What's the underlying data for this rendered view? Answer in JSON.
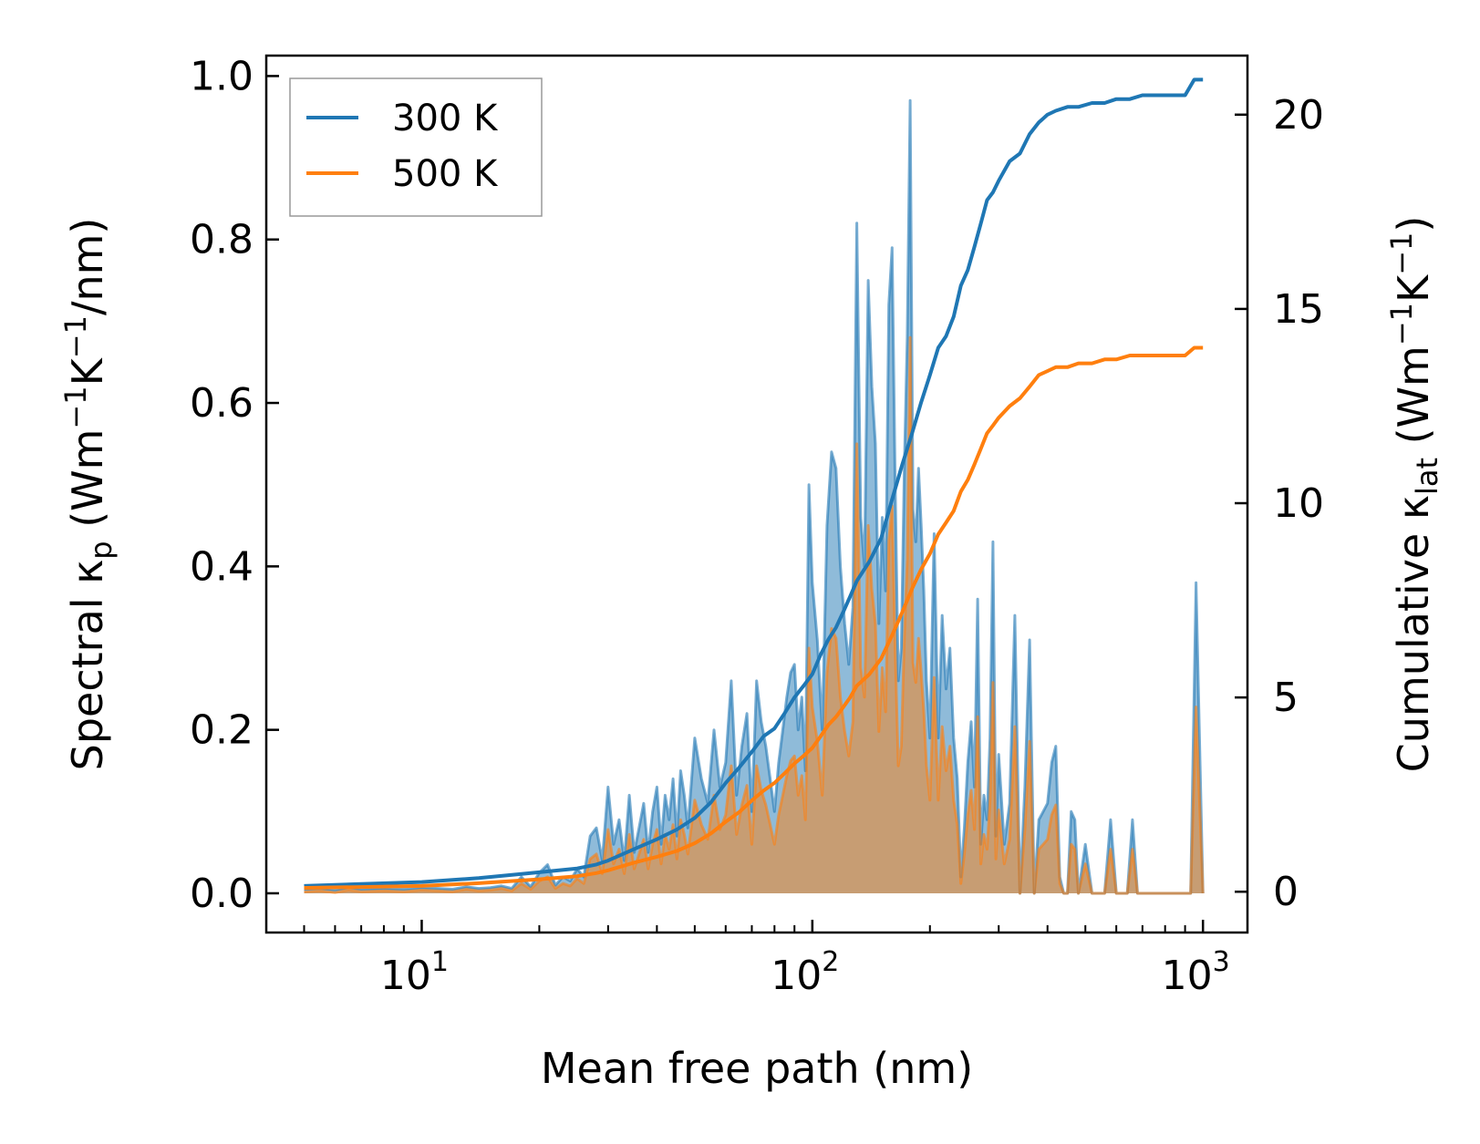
{
  "chart_data": {
    "type": "line",
    "xscale": "log",
    "xlabel": "Mean free path (nm)",
    "ylabel": {
      "prefix": "Spectral κ",
      "sub": "p",
      "units_before": " (Wm",
      "sup1": "−1",
      "mid": "K",
      "sup2": "−1",
      "after": "/nm)"
    },
    "y2label": {
      "prefix": "Cumulative κ",
      "sub": "lat",
      "units_before": " (Wm",
      "sup1": "−1",
      "mid": "K",
      "sup2": "−1",
      "after": ")"
    },
    "xlim": [
      4.0,
      1300.0
    ],
    "ylim": [
      -0.048,
      1.025
    ],
    "y2lim": [
      -1.05,
      21.52
    ],
    "xticks": [
      {
        "value": 10,
        "base": "10",
        "exp": "1"
      },
      {
        "value": 100,
        "base": "10",
        "exp": "2"
      },
      {
        "value": 1000,
        "base": "10",
        "exp": "3"
      }
    ],
    "yticks": [
      {
        "value": 0.0,
        "label": "0.0"
      },
      {
        "value": 0.2,
        "label": "0.2"
      },
      {
        "value": 0.4,
        "label": "0.4"
      },
      {
        "value": 0.6,
        "label": "0.6"
      },
      {
        "value": 0.8,
        "label": "0.8"
      },
      {
        "value": 1.0,
        "label": "1.0"
      }
    ],
    "y2ticks": [
      {
        "value": 0,
        "label": "0"
      },
      {
        "value": 5,
        "label": "5"
      },
      {
        "value": 10,
        "label": "10"
      },
      {
        "value": 15,
        "label": "15"
      },
      {
        "value": 20,
        "label": "20"
      }
    ],
    "legend": {
      "position": "upper-left",
      "entries": [
        {
          "label": "300 K",
          "color": "#1f77b4"
        },
        {
          "label": "500 K",
          "color": "#ff7f0e"
        }
      ]
    },
    "spectral": {
      "x": [
        5,
        5.5,
        6,
        6.5,
        7,
        8,
        9,
        10,
        11,
        12,
        13,
        14,
        15,
        16,
        17,
        18,
        19,
        20,
        21,
        22,
        23,
        24,
        25,
        26,
        27,
        28,
        29,
        30,
        31,
        32,
        33,
        34,
        35,
        36,
        37,
        38,
        39,
        40,
        41,
        42,
        43,
        44,
        45,
        46,
        47,
        48,
        50,
        52,
        54,
        56,
        58,
        60,
        62,
        64,
        66,
        68,
        70,
        72,
        74,
        76,
        78,
        80,
        82,
        84,
        86,
        88,
        90,
        92,
        94,
        96,
        98,
        100,
        103,
        106,
        109,
        112,
        115,
        118,
        121,
        124,
        127,
        130,
        133,
        136,
        139,
        142,
        145,
        148,
        151,
        154,
        157,
        160,
        163,
        166,
        169,
        172,
        175,
        178,
        181,
        184,
        187,
        190,
        193,
        196,
        200,
        205,
        210,
        215,
        220,
        225,
        230,
        235,
        240,
        245,
        250,
        255,
        260,
        265,
        270,
        275,
        280,
        285,
        290,
        295,
        300,
        310,
        320,
        330,
        340,
        350,
        360,
        370,
        380,
        390,
        400,
        410,
        420,
        430,
        440,
        450,
        460,
        470,
        480,
        500,
        520,
        540,
        560,
        580,
        600,
        620,
        640,
        660,
        680,
        700,
        720,
        740,
        760,
        800,
        850,
        900,
        930,
        960,
        1000
      ],
      "300 K": [
        0.005,
        0.006,
        0.004,
        0.007,
        0.005,
        0.006,
        0.005,
        0.007,
        0.006,
        0.005,
        0.008,
        0.006,
        0.007,
        0.009,
        0.006,
        0.02,
        0.008,
        0.025,
        0.035,
        0.01,
        0.02,
        0.015,
        0.03,
        0.02,
        0.07,
        0.08,
        0.04,
        0.13,
        0.06,
        0.09,
        0.04,
        0.12,
        0.05,
        0.08,
        0.11,
        0.05,
        0.1,
        0.13,
        0.06,
        0.12,
        0.09,
        0.14,
        0.07,
        0.15,
        0.12,
        0.08,
        0.19,
        0.14,
        0.11,
        0.2,
        0.13,
        0.16,
        0.26,
        0.12,
        0.18,
        0.22,
        0.1,
        0.26,
        0.21,
        0.18,
        0.14,
        0.1,
        0.16,
        0.2,
        0.24,
        0.27,
        0.28,
        0.2,
        0.24,
        0.15,
        0.5,
        0.38,
        0.31,
        0.2,
        0.45,
        0.54,
        0.52,
        0.4,
        0.33,
        0.28,
        0.35,
        0.82,
        0.46,
        0.4,
        0.75,
        0.62,
        0.55,
        0.33,
        0.46,
        0.37,
        0.72,
        0.79,
        0.5,
        0.26,
        0.3,
        0.52,
        0.68,
        0.97,
        0.47,
        0.43,
        0.52,
        0.45,
        0.37,
        0.26,
        0.19,
        0.44,
        0.19,
        0.34,
        0.25,
        0.3,
        0.19,
        0.14,
        0.02,
        0.08,
        0.16,
        0.21,
        0.13,
        0.36,
        0.06,
        0.12,
        0.09,
        0.19,
        0.43,
        0.07,
        0.17,
        0.06,
        0.11,
        0.34,
        0.0,
        0.13,
        0.31,
        0.0,
        0.09,
        0.1,
        0.11,
        0.16,
        0.18,
        0.02,
        0.0,
        0.0,
        0.1,
        0.09,
        0.0,
        0.06,
        0.0,
        0.0,
        0.0,
        0.09,
        0.0,
        0.0,
        0.0,
        0.09,
        0.0,
        0.0,
        0.0,
        0.0,
        0.0,
        0.0,
        0.0,
        0.0,
        0.0,
        0.38,
        0.0
      ],
      "500 K": [
        0.002,
        0.003,
        0.001,
        0.004,
        0.002,
        0.003,
        0.002,
        0.004,
        0.003,
        0.002,
        0.005,
        0.003,
        0.004,
        0.006,
        0.003,
        0.012,
        0.005,
        0.015,
        0.02,
        0.006,
        0.012,
        0.009,
        0.018,
        0.012,
        0.042,
        0.048,
        0.024,
        0.078,
        0.036,
        0.054,
        0.024,
        0.072,
        0.03,
        0.048,
        0.066,
        0.03,
        0.06,
        0.078,
        0.036,
        0.072,
        0.054,
        0.084,
        0.042,
        0.09,
        0.072,
        0.048,
        0.114,
        0.084,
        0.066,
        0.12,
        0.078,
        0.096,
        0.156,
        0.072,
        0.108,
        0.132,
        0.06,
        0.156,
        0.126,
        0.108,
        0.084,
        0.06,
        0.096,
        0.12,
        0.144,
        0.162,
        0.168,
        0.12,
        0.144,
        0.09,
        0.3,
        0.228,
        0.186,
        0.12,
        0.27,
        0.324,
        0.312,
        0.24,
        0.198,
        0.168,
        0.21,
        0.55,
        0.276,
        0.24,
        0.45,
        0.372,
        0.33,
        0.198,
        0.276,
        0.222,
        0.432,
        0.474,
        0.3,
        0.156,
        0.18,
        0.312,
        0.408,
        0.68,
        0.282,
        0.258,
        0.312,
        0.27,
        0.222,
        0.156,
        0.114,
        0.264,
        0.114,
        0.204,
        0.15,
        0.18,
        0.114,
        0.084,
        0.012,
        0.048,
        0.096,
        0.126,
        0.078,
        0.216,
        0.036,
        0.072,
        0.054,
        0.114,
        0.258,
        0.042,
        0.102,
        0.036,
        0.066,
        0.204,
        0.0,
        0.078,
        0.186,
        0.0,
        0.054,
        0.06,
        0.066,
        0.096,
        0.108,
        0.012,
        0.0,
        0.0,
        0.06,
        0.054,
        0.0,
        0.036,
        0.0,
        0.0,
        0.0,
        0.054,
        0.0,
        0.0,
        0.0,
        0.054,
        0.0,
        0.0,
        0.0,
        0.0,
        0.0,
        0.0,
        0.0,
        0.0,
        0.0,
        0.228,
        0.0
      ]
    },
    "cumulative": {
      "x": [
        5,
        7,
        10,
        14,
        20,
        25,
        28,
        30,
        35,
        40,
        45,
        50,
        55,
        60,
        65,
        70,
        75,
        80,
        85,
        90,
        95,
        100,
        105,
        110,
        115,
        120,
        125,
        130,
        140,
        150,
        160,
        170,
        180,
        190,
        200,
        210,
        220,
        230,
        240,
        250,
        260,
        270,
        280,
        290,
        300,
        320,
        340,
        360,
        380,
        400,
        420,
        450,
        480,
        520,
        560,
        600,
        650,
        700,
        800,
        900,
        950,
        1000
      ],
      "300 K": [
        0.15,
        0.2,
        0.25,
        0.35,
        0.5,
        0.6,
        0.7,
        0.8,
        1.1,
        1.35,
        1.6,
        1.9,
        2.3,
        2.8,
        3.2,
        3.6,
        4.0,
        4.2,
        4.6,
        5.0,
        5.3,
        5.6,
        6.1,
        6.5,
        6.8,
        7.2,
        7.6,
        8.0,
        8.5,
        9.1,
        10.1,
        11.0,
        11.8,
        12.6,
        13.3,
        14.0,
        14.3,
        14.8,
        15.6,
        16.0,
        16.6,
        17.2,
        17.8,
        18.0,
        18.3,
        18.8,
        19.0,
        19.5,
        19.8,
        20.0,
        20.1,
        20.2,
        20.2,
        20.3,
        20.3,
        20.4,
        20.4,
        20.5,
        20.5,
        20.5,
        20.9,
        20.9
      ],
      "500 K": [
        0.1,
        0.12,
        0.15,
        0.22,
        0.32,
        0.4,
        0.48,
        0.55,
        0.75,
        0.9,
        1.05,
        1.25,
        1.5,
        1.8,
        2.05,
        2.35,
        2.6,
        2.8,
        3.05,
        3.3,
        3.5,
        3.7,
        4.0,
        4.3,
        4.5,
        4.75,
        5.0,
        5.3,
        5.6,
        6.0,
        6.6,
        7.2,
        7.8,
        8.3,
        8.7,
        9.2,
        9.5,
        9.8,
        10.3,
        10.6,
        11.0,
        11.4,
        11.8,
        12.0,
        12.2,
        12.5,
        12.7,
        13.0,
        13.3,
        13.4,
        13.5,
        13.5,
        13.6,
        13.6,
        13.7,
        13.7,
        13.8,
        13.8,
        13.8,
        13.8,
        14.0,
        14.0
      ]
    }
  }
}
